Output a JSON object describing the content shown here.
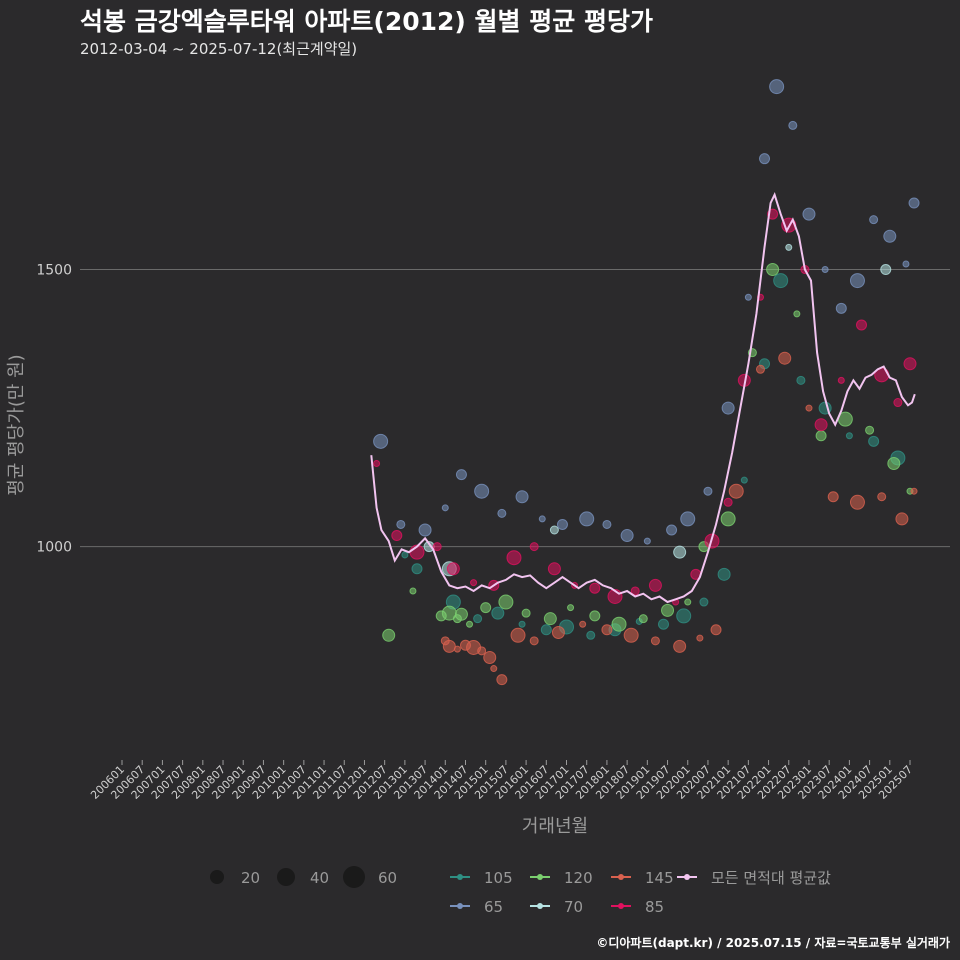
{
  "chart_data": {
    "type": "scatter",
    "title": "석봉 금강엑슬루타워 아파트(2012) 월별 평균 평당가",
    "subtitle": "2012-03-04 ~ 2025-07-12(최근계약일)",
    "xlabel": "거래년월",
    "ylabel": "평균 평당가(만 원)",
    "ylim": [
      615,
      1860
    ],
    "y_ticks": [
      1000,
      1500
    ],
    "x_ticks": [
      "200601",
      "200607",
      "200701",
      "200707",
      "200801",
      "200807",
      "200901",
      "200907",
      "201001",
      "201007",
      "201101",
      "201107",
      "201201",
      "201207",
      "201301",
      "201307",
      "201401",
      "201407",
      "201501",
      "201507",
      "201601",
      "201607",
      "201701",
      "201707",
      "201801",
      "201807",
      "201901",
      "201907",
      "202001",
      "202007",
      "202101",
      "202107",
      "202201",
      "202207",
      "202301",
      "202307",
      "202401",
      "202407",
      "202501",
      "202507"
    ],
    "size_legend": {
      "values": [
        20,
        40,
        60
      ],
      "labels": [
        "20",
        "40",
        "60"
      ]
    },
    "series": [
      {
        "name": "105",
        "color": "#2f8f83",
        "points": [
          [
            2013.0,
            985
          ],
          [
            2013.3,
            960
          ],
          [
            2014.2,
            900
          ],
          [
            2014.8,
            870
          ],
          [
            2015.3,
            880
          ],
          [
            2015.9,
            860
          ],
          [
            2016.5,
            850
          ],
          [
            2017.0,
            855
          ],
          [
            2017.6,
            840
          ],
          [
            2018.2,
            850
          ],
          [
            2018.8,
            865
          ],
          [
            2019.4,
            860
          ],
          [
            2019.9,
            875
          ],
          [
            2020.4,
            900
          ],
          [
            2020.9,
            950
          ],
          [
            2021.4,
            1120
          ],
          [
            2021.9,
            1330
          ],
          [
            2022.3,
            1480
          ],
          [
            2022.8,
            1300
          ],
          [
            2023.4,
            1250
          ],
          [
            2024.0,
            1200
          ],
          [
            2024.6,
            1190
          ],
          [
            2025.2,
            1160
          ]
        ]
      },
      {
        "name": "120",
        "color": "#7bcf6f",
        "points": [
          [
            2012.6,
            840
          ],
          [
            2013.2,
            920
          ],
          [
            2013.9,
            875
          ],
          [
            2014.1,
            880
          ],
          [
            2014.3,
            870
          ],
          [
            2014.4,
            878
          ],
          [
            2014.6,
            860
          ],
          [
            2015.0,
            890
          ],
          [
            2015.5,
            900
          ],
          [
            2016.0,
            880
          ],
          [
            2016.6,
            870
          ],
          [
            2017.1,
            890
          ],
          [
            2017.7,
            875
          ],
          [
            2018.3,
            860
          ],
          [
            2018.9,
            870
          ],
          [
            2019.5,
            885
          ],
          [
            2020.0,
            900
          ],
          [
            2020.4,
            1000
          ],
          [
            2021.0,
            1050
          ],
          [
            2021.6,
            1350
          ],
          [
            2022.1,
            1500
          ],
          [
            2022.7,
            1420
          ],
          [
            2023.3,
            1200
          ],
          [
            2023.9,
            1230
          ],
          [
            2024.5,
            1210
          ],
          [
            2025.1,
            1150
          ],
          [
            2025.5,
            1100
          ]
        ]
      },
      {
        "name": "145",
        "color": "#d9614f",
        "points": [
          [
            2014.0,
            830
          ],
          [
            2014.1,
            820
          ],
          [
            2014.3,
            815
          ],
          [
            2014.5,
            822
          ],
          [
            2014.7,
            818
          ],
          [
            2014.9,
            812
          ],
          [
            2015.1,
            800
          ],
          [
            2015.2,
            780
          ],
          [
            2015.4,
            760
          ],
          [
            2015.8,
            840
          ],
          [
            2016.2,
            830
          ],
          [
            2016.8,
            845
          ],
          [
            2017.4,
            860
          ],
          [
            2018.0,
            850
          ],
          [
            2018.6,
            840
          ],
          [
            2019.2,
            830
          ],
          [
            2019.8,
            820
          ],
          [
            2020.3,
            835
          ],
          [
            2020.7,
            850
          ],
          [
            2021.2,
            1100
          ],
          [
            2021.8,
            1320
          ],
          [
            2022.4,
            1340
          ],
          [
            2023.0,
            1250
          ],
          [
            2023.6,
            1090
          ],
          [
            2024.2,
            1080
          ],
          [
            2024.8,
            1090
          ],
          [
            2025.3,
            1050
          ],
          [
            2025.6,
            1100
          ]
        ]
      },
      {
        "name": "65",
        "color": "#7891bd",
        "points": [
          [
            2012.4,
            1190
          ],
          [
            2012.9,
            1040
          ],
          [
            2013.5,
            1030
          ],
          [
            2014.0,
            1070
          ],
          [
            2014.4,
            1130
          ],
          [
            2014.9,
            1100
          ],
          [
            2015.4,
            1060
          ],
          [
            2015.9,
            1090
          ],
          [
            2016.4,
            1050
          ],
          [
            2016.9,
            1040
          ],
          [
            2017.5,
            1050
          ],
          [
            2018.0,
            1040
          ],
          [
            2018.5,
            1020
          ],
          [
            2019.0,
            1010
          ],
          [
            2019.6,
            1030
          ],
          [
            2020.0,
            1050
          ],
          [
            2020.5,
            1100
          ],
          [
            2021.0,
            1250
          ],
          [
            2021.5,
            1450
          ],
          [
            2021.9,
            1700
          ],
          [
            2022.2,
            1830
          ],
          [
            2022.6,
            1760
          ],
          [
            2023.0,
            1600
          ],
          [
            2023.4,
            1500
          ],
          [
            2023.8,
            1430
          ],
          [
            2024.2,
            1480
          ],
          [
            2024.6,
            1590
          ],
          [
            2025.0,
            1560
          ],
          [
            2025.4,
            1510
          ],
          [
            2025.6,
            1620
          ]
        ]
      },
      {
        "name": "70",
        "color": "#b6e3e3",
        "points": [
          [
            2013.6,
            1000
          ],
          [
            2014.1,
            960
          ],
          [
            2016.7,
            1030
          ],
          [
            2019.8,
            990
          ],
          [
            2022.5,
            1540
          ],
          [
            2024.9,
            1500
          ]
        ]
      },
      {
        "name": "85",
        "color": "#e0115f",
        "points": [
          [
            2012.3,
            1150
          ],
          [
            2012.8,
            1020
          ],
          [
            2013.3,
            990
          ],
          [
            2013.8,
            1000
          ],
          [
            2014.2,
            960
          ],
          [
            2014.7,
            935
          ],
          [
            2015.2,
            930
          ],
          [
            2015.7,
            980
          ],
          [
            2016.2,
            1000
          ],
          [
            2016.7,
            960
          ],
          [
            2017.2,
            930
          ],
          [
            2017.7,
            925
          ],
          [
            2018.2,
            910
          ],
          [
            2018.7,
            920
          ],
          [
            2019.2,
            930
          ],
          [
            2019.7,
            900
          ],
          [
            2020.2,
            950
          ],
          [
            2020.6,
            1010
          ],
          [
            2021.0,
            1080
          ],
          [
            2021.4,
            1300
          ],
          [
            2021.8,
            1450
          ],
          [
            2022.1,
            1600
          ],
          [
            2022.5,
            1580
          ],
          [
            2022.9,
            1500
          ],
          [
            2023.3,
            1220
          ],
          [
            2023.8,
            1300
          ],
          [
            2024.3,
            1400
          ],
          [
            2024.8,
            1310
          ],
          [
            2025.2,
            1260
          ],
          [
            2025.5,
            1330
          ]
        ]
      }
    ],
    "average_line": {
      "name": "모든 면적대 평균값",
      "color": "#f2c4f0",
      "points": [
        [
          2012.17,
          1165
        ],
        [
          2012.3,
          1070
        ],
        [
          2012.42,
          1030
        ],
        [
          2012.6,
          1010
        ],
        [
          2012.75,
          975
        ],
        [
          2012.92,
          995
        ],
        [
          2013.1,
          990
        ],
        [
          2013.3,
          1000
        ],
        [
          2013.5,
          1015
        ],
        [
          2013.7,
          995
        ],
        [
          2013.9,
          955
        ],
        [
          2014.1,
          930
        ],
        [
          2014.3,
          925
        ],
        [
          2014.5,
          928
        ],
        [
          2014.7,
          920
        ],
        [
          2014.9,
          930
        ],
        [
          2015.1,
          925
        ],
        [
          2015.3,
          935
        ],
        [
          2015.5,
          940
        ],
        [
          2015.7,
          950
        ],
        [
          2015.9,
          945
        ],
        [
          2016.1,
          948
        ],
        [
          2016.3,
          935
        ],
        [
          2016.5,
          925
        ],
        [
          2016.7,
          935
        ],
        [
          2016.9,
          945
        ],
        [
          2017.1,
          935
        ],
        [
          2017.3,
          925
        ],
        [
          2017.5,
          935
        ],
        [
          2017.7,
          940
        ],
        [
          2017.9,
          930
        ],
        [
          2018.1,
          925
        ],
        [
          2018.3,
          915
        ],
        [
          2018.5,
          920
        ],
        [
          2018.7,
          910
        ],
        [
          2018.9,
          915
        ],
        [
          2019.1,
          905
        ],
        [
          2019.3,
          910
        ],
        [
          2019.5,
          900
        ],
        [
          2019.7,
          905
        ],
        [
          2019.9,
          910
        ],
        [
          2020.1,
          920
        ],
        [
          2020.3,
          945
        ],
        [
          2020.5,
          990
        ],
        [
          2020.7,
          1040
        ],
        [
          2020.9,
          1100
        ],
        [
          2021.1,
          1170
        ],
        [
          2021.3,
          1250
        ],
        [
          2021.5,
          1330
        ],
        [
          2021.7,
          1420
        ],
        [
          2021.9,
          1540
        ],
        [
          2022.05,
          1620
        ],
        [
          2022.15,
          1635
        ],
        [
          2022.3,
          1600
        ],
        [
          2022.45,
          1570
        ],
        [
          2022.6,
          1590
        ],
        [
          2022.75,
          1560
        ],
        [
          2022.9,
          1500
        ],
        [
          2023.05,
          1480
        ],
        [
          2023.2,
          1350
        ],
        [
          2023.35,
          1280
        ],
        [
          2023.5,
          1240
        ],
        [
          2023.65,
          1220
        ],
        [
          2023.8,
          1245
        ],
        [
          2023.95,
          1280
        ],
        [
          2024.1,
          1300
        ],
        [
          2024.25,
          1285
        ],
        [
          2024.4,
          1305
        ],
        [
          2024.55,
          1310
        ],
        [
          2024.7,
          1320
        ],
        [
          2024.85,
          1325
        ],
        [
          2025.0,
          1305
        ],
        [
          2025.15,
          1300
        ],
        [
          2025.3,
          1270
        ],
        [
          2025.45,
          1255
        ],
        [
          2025.55,
          1260
        ],
        [
          2025.62,
          1275
        ]
      ]
    }
  },
  "footer": {
    "credit": "©디아파트(dapt.kr) / 2025.07.15 / 자료=국토교통부 실거래가"
  }
}
